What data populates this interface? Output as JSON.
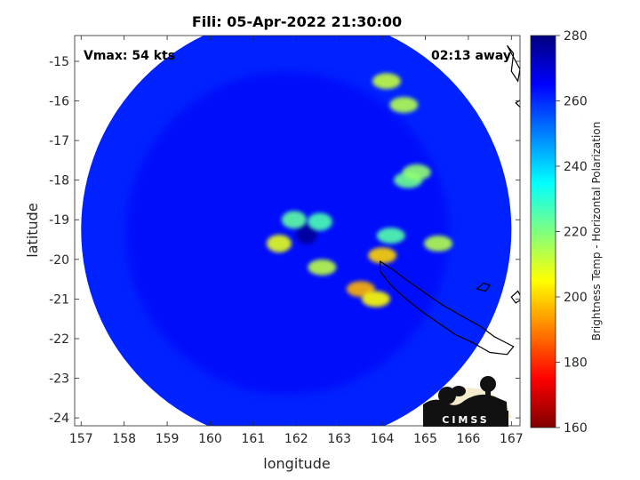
{
  "chart_data": {
    "type": "heatmap",
    "title": "Fili: 05-Apr-2022 21:30:00",
    "xlabel": "longitude",
    "ylabel": "latitude",
    "xlim": [
      156.85,
      167.2
    ],
    "ylim": [
      -24.2,
      -14.35
    ],
    "xticks": [
      157,
      158,
      159,
      160,
      161,
      162,
      163,
      164,
      165,
      166,
      167
    ],
    "yticks": [
      -15,
      -16,
      -17,
      -18,
      -19,
      -20,
      -21,
      -22,
      -23,
      -24
    ],
    "annotations": {
      "vmax": "Vmax: 54 kts",
      "time_offset": "02:13 away"
    },
    "colorbar": {
      "label": "Brightness Temp - Horizontal Polarization",
      "range": [
        160,
        280
      ],
      "ticks": [
        280,
        260,
        240,
        220,
        200,
        180,
        160
      ],
      "colormap": "jet"
    },
    "storm_center": {
      "lon": 162.2,
      "lat": -19.35
    },
    "swath_center": {
      "lon": 162.0,
      "lat": -19.25
    },
    "swath_radius_deg": 5.0,
    "features": [
      {
        "kind": "eyewall_arc",
        "lon": 161.6,
        "lat": -19.6,
        "temp": 208
      },
      {
        "kind": "eyewall_arc",
        "lon": 161.95,
        "lat": -19.0,
        "temp": 224
      },
      {
        "kind": "eyewall_arc",
        "lon": 162.55,
        "lat": -19.05,
        "temp": 226
      },
      {
        "kind": "rainband",
        "lon": 163.5,
        "lat": -20.75,
        "temp": 196
      },
      {
        "kind": "rainband",
        "lon": 163.85,
        "lat": -21.0,
        "temp": 205
      },
      {
        "kind": "rainband",
        "lon": 162.6,
        "lat": -20.2,
        "temp": 213
      },
      {
        "kind": "rainband",
        "lon": 164.0,
        "lat": -19.9,
        "temp": 200
      },
      {
        "kind": "rainband",
        "lon": 164.6,
        "lat": -18.0,
        "temp": 222
      },
      {
        "kind": "rainband",
        "lon": 164.8,
        "lat": -17.8,
        "temp": 218
      },
      {
        "kind": "rainband",
        "lon": 165.3,
        "lat": -19.6,
        "temp": 214
      },
      {
        "kind": "rainband",
        "lon": 164.1,
        "lat": -15.5,
        "temp": 212
      },
      {
        "kind": "rainband",
        "lon": 164.5,
        "lat": -16.1,
        "temp": 214
      },
      {
        "kind": "rainband",
        "lon": 164.2,
        "lat": -19.4,
        "temp": 225
      }
    ]
  },
  "logo": {
    "text": "CIMSS"
  }
}
